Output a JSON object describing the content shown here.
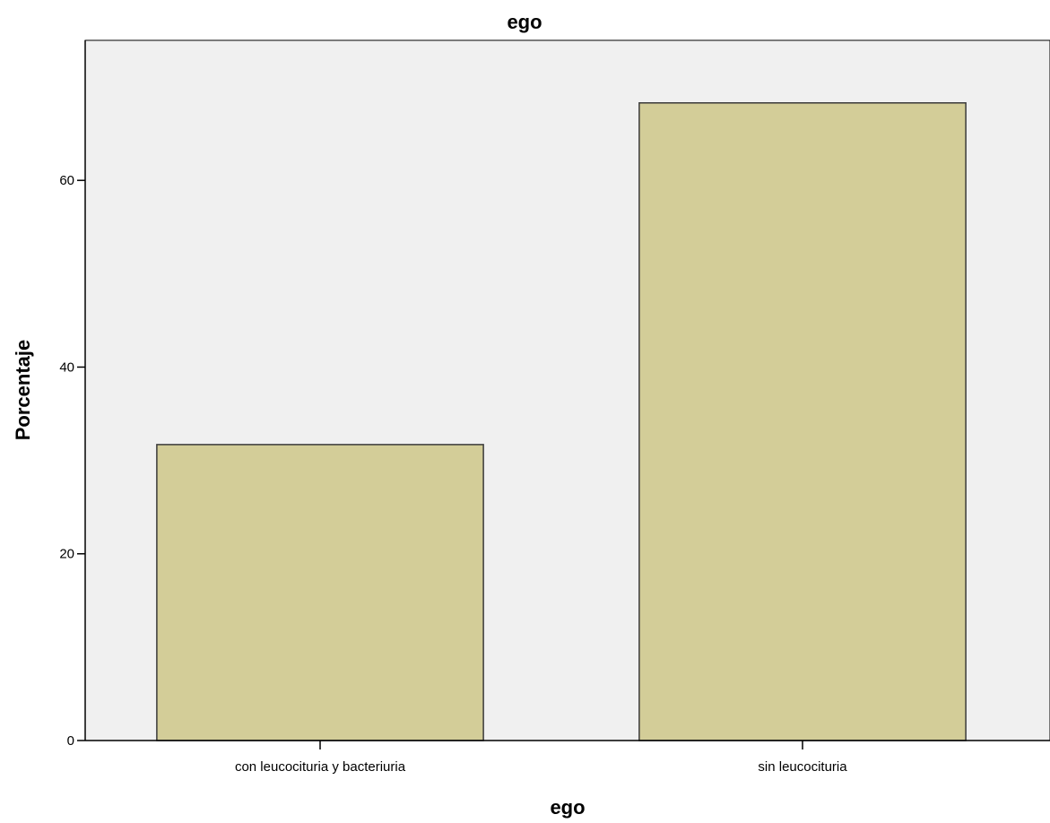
{
  "chart_data": {
    "type": "bar",
    "title": "ego",
    "xlabel": "ego",
    "ylabel": "Porcentaje",
    "categories": [
      "con leucocituria y bacteriuria",
      "sin leucocituria"
    ],
    "values": [
      31.7,
      68.3
    ],
    "ylim": [
      0,
      75
    ],
    "yticks": [
      0,
      20,
      40,
      60
    ],
    "grid": false,
    "colors": {
      "plot_background": "#f0f0f0",
      "bar_fill": "#d3cd98",
      "bar_stroke": "#3a3a3a",
      "axis": "#000000"
    }
  }
}
